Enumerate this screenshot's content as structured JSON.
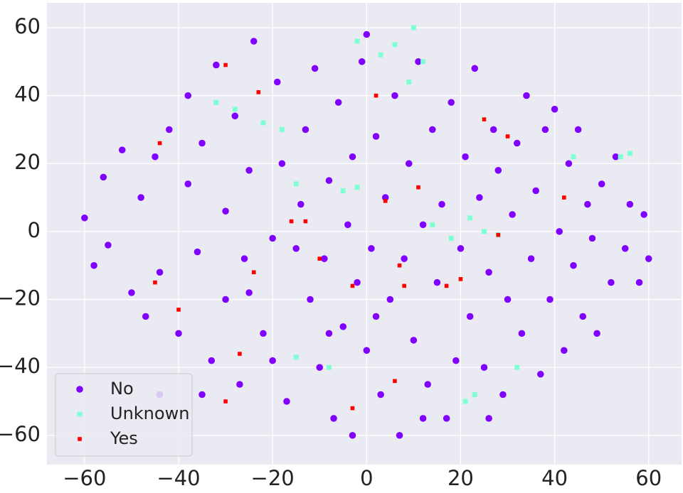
{
  "chart_data": {
    "type": "scatter",
    "xlim": [
      -68,
      67
    ],
    "ylim": [
      -68.6,
      67.3
    ],
    "xticks": [
      {
        "value": -60,
        "label": "−60"
      },
      {
        "value": -40,
        "label": "−40"
      },
      {
        "value": -20,
        "label": "−20"
      },
      0,
      20,
      40,
      60
    ],
    "yticks": [
      {
        "value": -60,
        "label": "−60"
      },
      {
        "value": -40,
        "label": "−40"
      },
      {
        "value": -20,
        "label": "−20"
      },
      0,
      20,
      40,
      60
    ],
    "grid": true,
    "legend": "lower left",
    "background": "#eaeaf2",
    "series": [
      {
        "name": "No",
        "color": "#8000ff",
        "marker": "circle",
        "x": [
          -60,
          -58,
          -56,
          -55,
          -52,
          -50,
          -48,
          -47,
          -45,
          -44,
          -42,
          -40,
          -38,
          -38,
          -36,
          -35,
          -33,
          -32,
          -30,
          -30,
          -28,
          -27,
          -26,
          -25,
          -24,
          -22,
          -20,
          -19,
          -18,
          -17,
          -15,
          -14,
          -13,
          -12,
          -11,
          -10,
          -9,
          -8,
          -7,
          -6,
          -5,
          -4,
          -3,
          -2,
          -1,
          0,
          0,
          1,
          2,
          3,
          4,
          5,
          6,
          7,
          8,
          9,
          10,
          11,
          12,
          13,
          14,
          15,
          16,
          17,
          18,
          19,
          20,
          21,
          22,
          23,
          24,
          25,
          26,
          27,
          28,
          29,
          30,
          31,
          32,
          33,
          34,
          35,
          36,
          37,
          38,
          39,
          40,
          41,
          42,
          43,
          44,
          45,
          46,
          47,
          48,
          49,
          50,
          52,
          53,
          55,
          56,
          58,
          59,
          60,
          -44,
          -20,
          -3,
          12,
          2,
          -8,
          -25,
          26,
          -35
        ],
        "y": [
          4,
          -10,
          16,
          -4,
          24,
          -18,
          10,
          -25,
          22,
          -12,
          30,
          -30,
          40,
          14,
          -6,
          26,
          -38,
          49,
          6,
          -20,
          34,
          -45,
          -8,
          18,
          56,
          -30,
          -2,
          44,
          20,
          -50,
          -5,
          8,
          30,
          -20,
          48,
          -40,
          -8,
          15,
          -55,
          38,
          -28,
          2,
          22,
          -15,
          50,
          -35,
          58,
          -5,
          28,
          -48,
          10,
          -20,
          40,
          -60,
          -8,
          20,
          -32,
          50,
          2,
          -45,
          30,
          -15,
          8,
          -55,
          38,
          -38,
          -5,
          22,
          -25,
          48,
          10,
          -40,
          -12,
          30,
          18,
          -48,
          -20,
          5,
          26,
          -30,
          40,
          -8,
          12,
          -42,
          30,
          -20,
          36,
          0,
          -35,
          20,
          -10,
          30,
          -25,
          8,
          -2,
          -30,
          14,
          -15,
          22,
          -5,
          8,
          -15,
          5,
          -8,
          -48,
          -38,
          -60,
          -55,
          -25,
          -30,
          -18,
          -55,
          -48
        ]
      },
      {
        "name": "Unknown",
        "color": "#80ffd4",
        "marker": "square",
        "x": [
          -32,
          -28,
          -22,
          -18,
          -15,
          -5,
          -2,
          3,
          6,
          9,
          12,
          14,
          18,
          22,
          25,
          28,
          -15,
          -8,
          21,
          23,
          32,
          44,
          54,
          56,
          10,
          -2
        ],
        "y": [
          38,
          36,
          32,
          30,
          14,
          12,
          13,
          52,
          55,
          44,
          50,
          2,
          -2,
          4,
          0,
          -1,
          -37,
          -40,
          -50,
          -48,
          -40,
          22,
          22,
          23,
          60,
          56
        ]
      },
      {
        "name": "Yes",
        "color": "#ff0000",
        "marker": "square",
        "x": [
          -44,
          -30,
          -23,
          -16,
          -13,
          -10,
          -3,
          2,
          4,
          7,
          8,
          11,
          17,
          20,
          25,
          28,
          30,
          -27,
          -30,
          -3,
          6,
          42,
          -45,
          -40,
          -24
        ],
        "y": [
          26,
          49,
          41,
          3,
          3,
          -8,
          -16,
          40,
          9,
          -10,
          -16,
          13,
          -16,
          -14,
          33,
          -1,
          28,
          -36,
          -50,
          -52,
          -44,
          10,
          -15,
          -23,
          -12
        ]
      }
    ]
  }
}
